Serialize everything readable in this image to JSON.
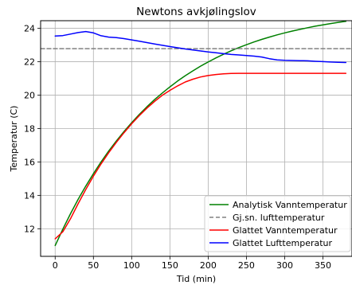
{
  "chart_data": {
    "type": "line",
    "title": "Newtons avkjølingslov",
    "xlabel": "Tid (min)",
    "ylabel": "Temperatur (C)",
    "xlim": [
      -19,
      388
    ],
    "ylim": [
      10.35,
      24.45
    ],
    "xticks": [
      0,
      50,
      100,
      150,
      200,
      250,
      300,
      350
    ],
    "yticks": [
      12,
      14,
      16,
      18,
      20,
      22,
      24
    ],
    "grid": true,
    "legend_position": "lower right",
    "series": [
      {
        "name": "Analytisk Vanntemperatur",
        "color": "#008000",
        "dash": "solid",
        "x": [
          0,
          10,
          20,
          30,
          40,
          50,
          60,
          70,
          80,
          90,
          100,
          110,
          120,
          130,
          140,
          150,
          160,
          170,
          180,
          190,
          200,
          210,
          220,
          230,
          240,
          250,
          260,
          270,
          280,
          290,
          300,
          310,
          320,
          330,
          340,
          350,
          360,
          370,
          380
        ],
        "y": [
          11.0,
          11.98,
          12.9,
          13.76,
          14.55,
          15.3,
          16.0,
          16.65,
          17.25,
          17.82,
          18.35,
          18.84,
          19.3,
          19.73,
          20.12,
          20.49,
          20.84,
          21.16,
          21.45,
          21.73,
          21.98,
          22.22,
          22.44,
          22.65,
          22.84,
          23.01,
          23.18,
          23.33,
          23.47,
          23.6,
          23.72,
          23.83,
          23.93,
          24.03,
          24.12,
          24.2,
          24.28,
          24.35,
          24.41
        ]
      },
      {
        "name": "Gj.sn. lufttemperatur",
        "color": "#808080",
        "dash": "dashed",
        "x": [
          -19,
          388
        ],
        "y": [
          22.78,
          22.78
        ]
      },
      {
        "name": "Glattet Vanntemperatur",
        "color": "#ff0000",
        "dash": "solid",
        "x": [
          0,
          10,
          20,
          30,
          40,
          50,
          60,
          70,
          80,
          90,
          100,
          110,
          120,
          130,
          140,
          150,
          160,
          170,
          180,
          190,
          200,
          210,
          220,
          230,
          240,
          250,
          260,
          270,
          280,
          290,
          300,
          310,
          320,
          330,
          340,
          350,
          360,
          370,
          380
        ],
        "y": [
          11.4,
          11.82,
          12.6,
          13.5,
          14.35,
          15.15,
          15.88,
          16.55,
          17.17,
          17.75,
          18.28,
          18.77,
          19.22,
          19.62,
          19.98,
          20.28,
          20.55,
          20.78,
          20.95,
          21.08,
          21.17,
          21.23,
          21.27,
          21.29,
          21.3,
          21.3,
          21.3,
          21.3,
          21.3,
          21.3,
          21.3,
          21.3,
          21.3,
          21.3,
          21.3,
          21.3,
          21.3,
          21.3,
          21.3
        ]
      },
      {
        "name": "Glattet Lufttemperatur",
        "color": "#0000ff",
        "dash": "solid",
        "x": [
          0,
          10,
          20,
          30,
          40,
          50,
          60,
          70,
          80,
          90,
          100,
          110,
          120,
          130,
          140,
          150,
          160,
          170,
          180,
          190,
          200,
          210,
          220,
          230,
          240,
          250,
          260,
          270,
          280,
          290,
          300,
          310,
          320,
          330,
          340,
          350,
          360,
          370,
          380
        ],
        "y": [
          23.53,
          23.56,
          23.65,
          23.74,
          23.8,
          23.72,
          23.55,
          23.47,
          23.44,
          23.38,
          23.3,
          23.22,
          23.14,
          23.06,
          22.98,
          22.9,
          22.83,
          22.76,
          22.7,
          22.64,
          22.58,
          22.53,
          22.48,
          22.43,
          22.4,
          22.37,
          22.33,
          22.28,
          22.18,
          22.1,
          22.08,
          22.07,
          22.06,
          22.05,
          22.02,
          22.0,
          21.98,
          21.96,
          21.95
        ]
      }
    ]
  }
}
